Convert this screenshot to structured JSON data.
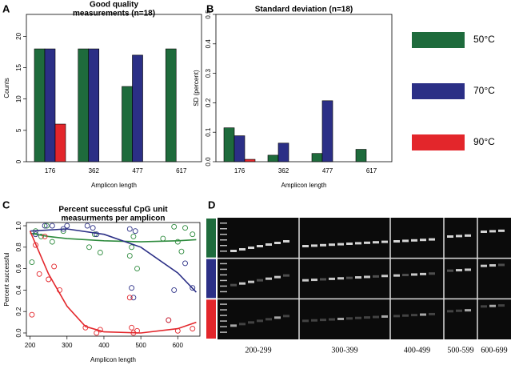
{
  "chart_data": [
    {
      "type": "bar",
      "panel_label": "A",
      "title": [
        "Good quality",
        "measurements (n=18)"
      ],
      "x_label": "Amplicon length",
      "y_label": "Counts",
      "categories": [
        "176",
        "362",
        "477",
        "617"
      ],
      "series": [
        {
          "name": "50°C",
          "color": "#1e6b3c",
          "values": [
            18,
            18,
            12,
            18
          ]
        },
        {
          "name": "70°C",
          "color": "#2b2f86",
          "values": [
            18,
            18,
            17,
            0
          ]
        },
        {
          "name": "90°C",
          "color": "#e3262b",
          "values": [
            6,
            0,
            0,
            0
          ]
        }
      ],
      "ylim": [
        0,
        23.5
      ],
      "yticks": [
        0,
        5,
        10,
        15,
        20
      ]
    },
    {
      "type": "bar",
      "panel_label": "B",
      "title": [
        "Standard deviation (n=18)"
      ],
      "x_label": "Amplicon length",
      "y_label": "SD (percent)",
      "categories": [
        "176",
        "362",
        "477",
        "617"
      ],
      "series": [
        {
          "color": "#1e6b3c",
          "values": [
            0.115,
            0.022,
            0.028,
            0.042
          ]
        },
        {
          "color": "#2b2f86",
          "values": [
            0.088,
            0.063,
            0.207,
            0
          ]
        },
        {
          "color": "#e3262b",
          "values": [
            0.008,
            0,
            0,
            0
          ]
        }
      ],
      "ylim": [
        0,
        0.5
      ],
      "yticks": [
        {
          "value": 0,
          "label": "0.0"
        },
        0.1,
        0.2,
        0.3,
        0.4,
        0.5
      ]
    },
    {
      "type": "scatter",
      "panel_label": "C",
      "title": [
        "Percent successful CpG unit",
        "measurments per amplicon"
      ],
      "x_label": "Amplicon length",
      "y_label": "Percent successful",
      "series": [
        {
          "color": "#2e8b3e",
          "x": [
            205,
            215,
            230,
            245,
            260,
            290,
            360,
            375,
            390,
            470,
            475,
            480,
            490,
            560,
            590,
            600,
            610,
            620,
            640
          ],
          "values": [
            0.66,
            0.95,
            0.9,
            1.0,
            0.85,
            0.95,
            0.8,
            0.92,
            0.75,
            0.72,
            0.8,
            0.9,
            0.6,
            0.88,
            0.99,
            0.85,
            0.76,
            0.98,
            0.92
          ],
          "fit": {
            "x": [
              200,
              250,
              300,
              400,
              500,
              600,
              650
            ],
            "values": [
              0.93,
              0.9,
              0.88,
              0.86,
              0.85,
              0.86,
              0.87
            ]
          }
        },
        {
          "color": "#2b2f86",
          "x": [
            215,
            240,
            260,
            290,
            300,
            355,
            370,
            380,
            470,
            475,
            480,
            485,
            575,
            590,
            620,
            640
          ],
          "values": [
            0.92,
            1.0,
            1.0,
            0.97,
            1.0,
            1.0,
            0.98,
            0.92,
            0.97,
            0.42,
            0.33,
            0.95,
            0.12,
            0.4,
            0.65,
            0.42
          ],
          "fit": {
            "x": [
              200,
              300,
              400,
              500,
              600,
              650
            ],
            "values": [
              0.95,
              0.97,
              0.92,
              0.8,
              0.56,
              0.38
            ]
          }
        },
        {
          "color": "#e3262b",
          "x": [
            205,
            215,
            225,
            240,
            250,
            265,
            280,
            350,
            380,
            390,
            470,
            475,
            480,
            490,
            575,
            600,
            640
          ],
          "values": [
            0.17,
            0.82,
            0.55,
            0.9,
            0.5,
            0.62,
            0.4,
            0.05,
            0.0,
            0.03,
            0.33,
            0.05,
            0.0,
            0.02,
            0.12,
            0.02,
            0.04
          ],
          "fit": {
            "x": [
              200,
              250,
              300,
              350,
              400,
              500,
              600,
              650
            ],
            "values": [
              0.95,
              0.55,
              0.25,
              0.06,
              0.01,
              0.0,
              0.04,
              0.1
            ]
          }
        }
      ],
      "xlim": [
        190,
        660
      ],
      "xticks": [
        200,
        300,
        400,
        500,
        600
      ],
      "ylim": [
        -0.03,
        1.03
      ],
      "yticks": [
        {
          "value": 0,
          "label": "0.0"
        },
        0.2,
        0.4,
        0.6,
        0.8,
        {
          "value": 1,
          "label": "1.0"
        }
      ]
    }
  ],
  "gel": {
    "panel_label": "D",
    "lane_groups": [
      "200-299",
      "300-399",
      "400-499",
      "500-599",
      "600-699"
    ]
  }
}
